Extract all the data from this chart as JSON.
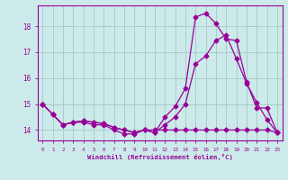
{
  "bg_color": "#cceaea",
  "grid_color": "#aacccc",
  "line_color": "#990099",
  "marker": "D",
  "markersize": 2.5,
  "linewidth": 0.9,
  "xlabel": "Windchill (Refroidissement éolien,°C)",
  "xlim": [
    -0.5,
    23.5
  ],
  "ylim": [
    13.6,
    18.8
  ],
  "xticks": [
    0,
    1,
    2,
    3,
    4,
    5,
    6,
    7,
    8,
    9,
    10,
    11,
    12,
    13,
    14,
    15,
    16,
    17,
    18,
    19,
    20,
    21,
    22,
    23
  ],
  "yticks": [
    14,
    15,
    16,
    17,
    18
  ],
  "line1_x": [
    0,
    1,
    2,
    3,
    4,
    5,
    6,
    7,
    8,
    9,
    10,
    11,
    12,
    13,
    14,
    15,
    16,
    17,
    18,
    19,
    20,
    21,
    22,
    23
  ],
  "line1_y": [
    15.0,
    14.6,
    14.2,
    14.3,
    14.3,
    14.2,
    14.2,
    14.0,
    13.85,
    13.85,
    14.0,
    14.0,
    14.0,
    14.0,
    14.0,
    14.0,
    14.0,
    14.0,
    14.0,
    14.0,
    14.0,
    14.0,
    14.0,
    13.9
  ],
  "line2_x": [
    0,
    1,
    2,
    3,
    4,
    5,
    6,
    7,
    8,
    9,
    10,
    11,
    12,
    13,
    14,
    15,
    16,
    17,
    18,
    19,
    20,
    21,
    22,
    23
  ],
  "line2_y": [
    15.0,
    14.6,
    14.2,
    14.3,
    14.35,
    14.3,
    14.25,
    14.1,
    14.0,
    13.9,
    14.0,
    13.9,
    14.2,
    14.5,
    15.0,
    16.55,
    16.85,
    17.45,
    17.65,
    16.75,
    15.8,
    15.05,
    14.4,
    13.9
  ],
  "line3_x": [
    0,
    1,
    2,
    3,
    4,
    5,
    6,
    7,
    8,
    9,
    10,
    11,
    12,
    13,
    14,
    15,
    16,
    17,
    18,
    19,
    20,
    21,
    22,
    23
  ],
  "line3_y": [
    15.0,
    14.6,
    14.2,
    14.3,
    14.35,
    14.3,
    14.25,
    14.1,
    14.0,
    13.9,
    14.0,
    13.9,
    14.5,
    14.9,
    15.6,
    18.35,
    18.5,
    18.1,
    17.5,
    17.45,
    15.85,
    14.85,
    14.85,
    13.9
  ]
}
